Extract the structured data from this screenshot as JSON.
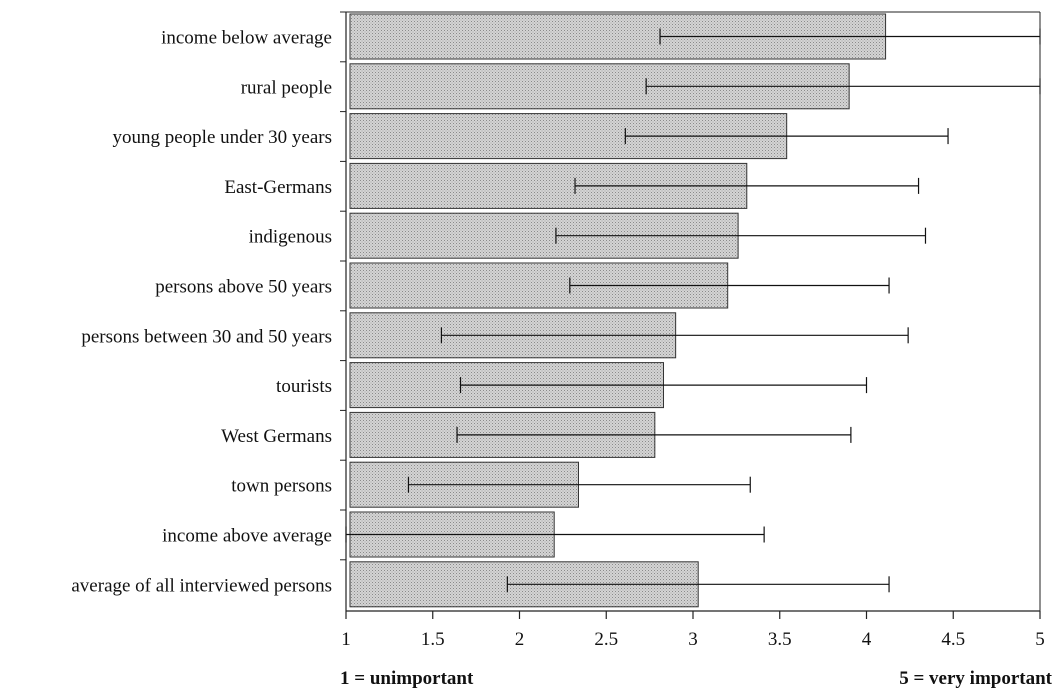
{
  "chart_data": {
    "type": "bar",
    "orientation": "horizontal",
    "categories": [
      "income below average",
      "rural people",
      "young people under 30 years",
      "East-Germans",
      "indigenous",
      "persons above 50 years",
      "persons between 30 and 50 years",
      "tourists",
      "West Germans",
      "town persons",
      "income above average",
      "average of all interviewed persons"
    ],
    "values": [
      4.11,
      3.9,
      3.54,
      3.31,
      3.26,
      3.2,
      2.9,
      2.83,
      2.78,
      2.34,
      2.2,
      3.03
    ],
    "error_low": [
      2.81,
      2.73,
      2.61,
      2.32,
      2.21,
      2.29,
      1.55,
      1.66,
      1.64,
      1.36,
      1.0,
      1.93
    ],
    "error_high": [
      5.0,
      5.0,
      4.47,
      4.3,
      4.34,
      4.13,
      4.24,
      4.0,
      3.91,
      3.33,
      3.41,
      4.13
    ],
    "xlim": [
      1,
      5
    ],
    "xticks": [
      "1",
      "1.5",
      "2",
      "2.5",
      "3",
      "3.5",
      "4",
      "4.5",
      "5"
    ],
    "title": "",
    "xlabel": "",
    "ylabel": "",
    "grid": false,
    "legend": "none",
    "bar_color": "#c8c8c8",
    "scale_notes": {
      "low": "1 = unimportant",
      "high": "5 = very important"
    }
  }
}
